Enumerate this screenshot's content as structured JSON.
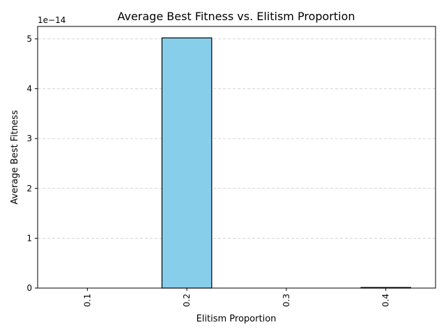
{
  "chart_data": {
    "type": "bar",
    "title": "Average Best Fitness vs. Elitism Proportion",
    "xlabel": "Elitism Proportion",
    "ylabel": "Average Best Fitness",
    "categories": [
      "0.1",
      "0.2",
      "0.3",
      "0.4"
    ],
    "values": [
      0.0,
      5.02e-14,
      0.0,
      1.2e-16
    ],
    "ylim": [
      0,
      5.25e-14
    ],
    "y_ticks": [
      0,
      1e-14,
      2e-14,
      3e-14,
      4e-14,
      5e-14
    ],
    "y_tick_labels": [
      "0",
      "1",
      "2",
      "3",
      "4",
      "5"
    ],
    "y_offset_label": "1e−14",
    "x_tick_rotation": "vertical",
    "grid": "y-dashed",
    "legend": "none",
    "bar_color": "#87ceeb",
    "bar_edge_color": "#000000",
    "grid_color": "#c8c8c8"
  }
}
